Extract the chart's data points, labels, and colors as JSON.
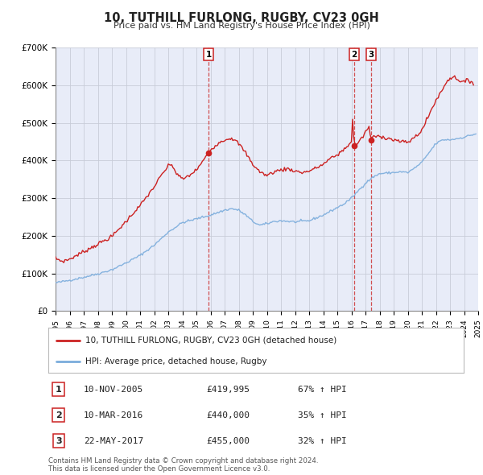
{
  "title": "10, TUTHILL FURLONG, RUGBY, CV23 0GH",
  "subtitle": "Price paid vs. HM Land Registry's House Price Index (HPI)",
  "line1_label": "10, TUTHILL FURLONG, RUGBY, CV23 0GH (detached house)",
  "line2_label": "HPI: Average price, detached house, Rugby",
  "line1_color": "#cc2222",
  "line2_color": "#7aacdc",
  "background_color": "#ffffff",
  "plot_bg_color": "#e8ecf8",
  "grid_color": "#c8ccd8",
  "xmin": 1995,
  "xmax": 2025,
  "ymin": 0,
  "ymax": 700000,
  "yticks": [
    0,
    100000,
    200000,
    300000,
    400000,
    500000,
    600000,
    700000
  ],
  "ytick_labels": [
    "£0",
    "£100K",
    "£200K",
    "£300K",
    "£400K",
    "£500K",
    "£600K",
    "£700K"
  ],
  "sales": [
    {
      "num": 1,
      "date": "10-NOV-2005",
      "price": 419995,
      "price_str": "£419,995",
      "pct": "67%",
      "x": 2005.86
    },
    {
      "num": 2,
      "date": "10-MAR-2016",
      "price": 440000,
      "price_str": "£440,000",
      "pct": "35%",
      "x": 2016.19
    },
    {
      "num": 3,
      "date": "22-MAY-2017",
      "price": 455000,
      "price_str": "£455,000",
      "pct": "32%",
      "x": 2017.39
    }
  ],
  "footer": "Contains HM Land Registry data © Crown copyright and database right 2024.\nThis data is licensed under the Open Government Licence v3.0."
}
